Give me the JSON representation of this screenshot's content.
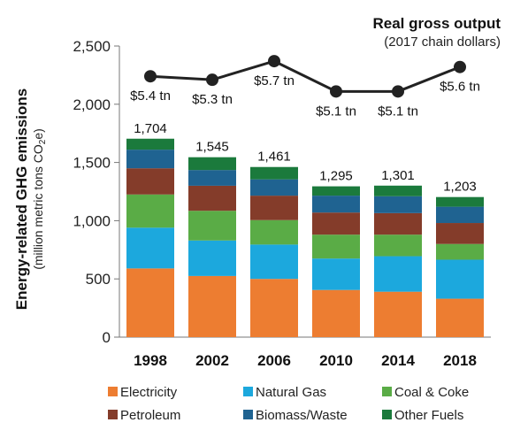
{
  "chart_data": {
    "type": "bar",
    "stacked": true,
    "title": "Real gross output",
    "subtitle": "(2017 chain dollars)",
    "ylabel": "Energy-related GHG emissions",
    "ylabel_sub": "(million metric tons CO",
    "ylabel_sub_sub": "2",
    "ylabel_sub_end": "e)",
    "ylim": [
      0,
      2500
    ],
    "yticks": [
      0,
      500,
      1000,
      1500,
      2000,
      2500
    ],
    "ytick_labels": [
      "0",
      "500",
      "1,000",
      "1,500",
      "2,000",
      "2,500"
    ],
    "categories": [
      "1998",
      "2002",
      "2006",
      "2010",
      "2014",
      "2018"
    ],
    "series": [
      {
        "name": "Electricity",
        "color": "#ed7d31",
        "values": [
          590,
          525,
          500,
          405,
          390,
          330
        ]
      },
      {
        "name": "Natural Gas",
        "color": "#1ca8dd",
        "values": [
          350,
          305,
          295,
          270,
          305,
          335
        ]
      },
      {
        "name": "Coal & Coke",
        "color": "#5aac46",
        "values": [
          285,
          255,
          210,
          205,
          185,
          135
        ]
      },
      {
        "name": "Petroleum",
        "color": "#843c2a",
        "values": [
          225,
          215,
          210,
          190,
          185,
          180
        ]
      },
      {
        "name": "Biomass/Waste",
        "color": "#1f6391",
        "values": [
          160,
          135,
          140,
          145,
          145,
          140
        ]
      },
      {
        "name": "Other Fuels",
        "color": "#1b7a3c",
        "values": [
          94,
          110,
          106,
          80,
          91,
          83
        ]
      }
    ],
    "totals": [
      "1,704",
      "1,545",
      "1,461",
      "1,295",
      "1,301",
      "1,203"
    ],
    "overlay_line": {
      "color": "#222222",
      "values": [
        2240,
        2210,
        2370,
        2110,
        2110,
        2320
      ],
      "labels": [
        "$5.4 tn",
        "$5.3 tn",
        "$5.7 tn",
        "$5.1 tn",
        "$5.1 tn",
        "$5.6 tn"
      ]
    },
    "legend_position": "bottom"
  }
}
